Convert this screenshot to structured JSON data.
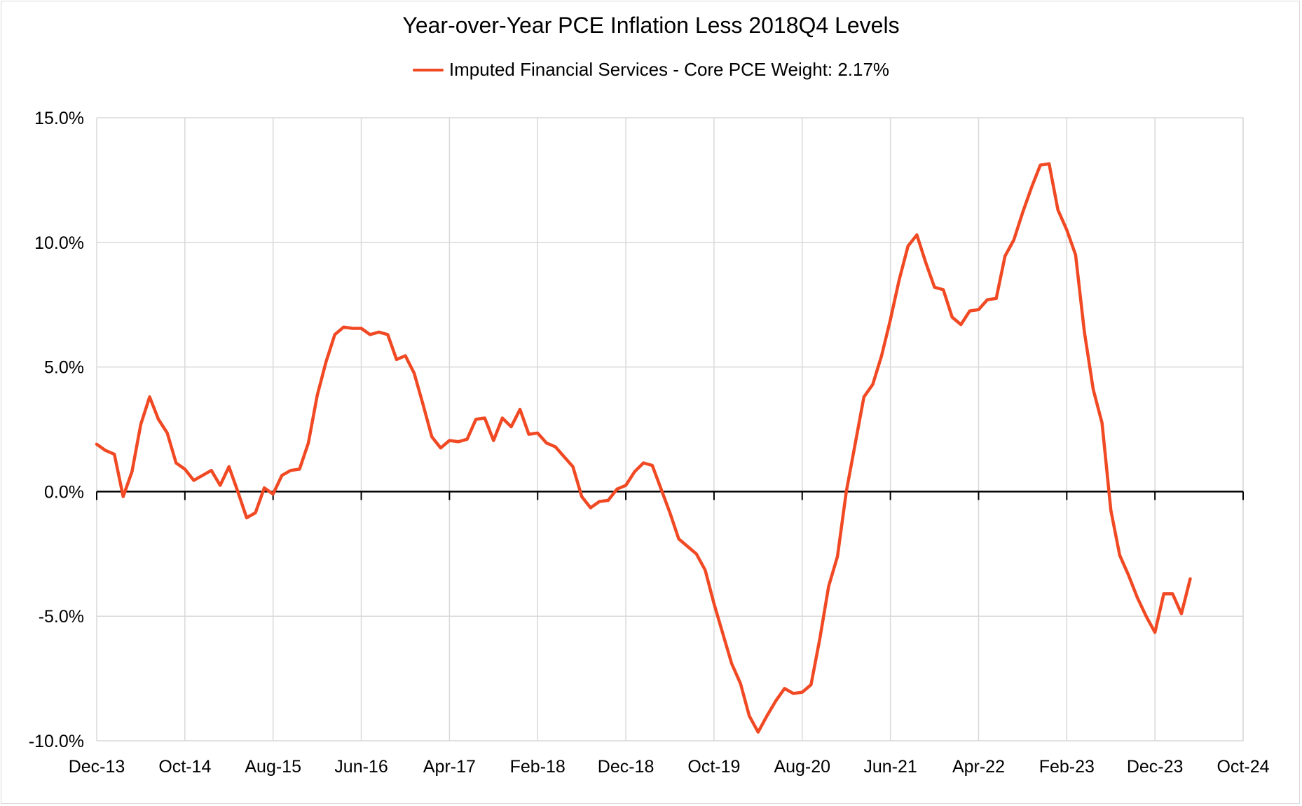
{
  "chart_data": {
    "type": "line",
    "title": "Year-over-Year PCE Inflation Less 2018Q4 Levels",
    "xlabel": "",
    "ylabel": "",
    "ylim": [
      -10,
      15
    ],
    "yticks": [
      "-10.0%",
      "-5.0%",
      "0.0%",
      "5.0%",
      "10.0%",
      "15.0%"
    ],
    "ytick_values": [
      -10,
      -5,
      0,
      5,
      10,
      15
    ],
    "xticks": [
      "Dec-13",
      "Oct-14",
      "Aug-15",
      "Jun-16",
      "Apr-17",
      "Feb-18",
      "Dec-18",
      "Oct-19",
      "Aug-20",
      "Jun-21",
      "Apr-22",
      "Feb-23",
      "Dec-23",
      "Oct-24"
    ],
    "x_start": "Dec-13",
    "x_end": "Oct-24",
    "grid": "vertical and horizontal",
    "legend_position": "top",
    "series": [
      {
        "name": "Imputed Financial Services - Core PCE Weight: 2.17%",
        "color": "#f04923",
        "x": [
          "Dec-13",
          "Jan-14",
          "Feb-14",
          "Mar-14",
          "Apr-14",
          "May-14",
          "Jun-14",
          "Jul-14",
          "Aug-14",
          "Sep-14",
          "Oct-14",
          "Nov-14",
          "Dec-14",
          "Jan-15",
          "Feb-15",
          "Mar-15",
          "Apr-15",
          "May-15",
          "Jun-15",
          "Jul-15",
          "Aug-15",
          "Sep-15",
          "Oct-15",
          "Nov-15",
          "Dec-15",
          "Jan-16",
          "Feb-16",
          "Mar-16",
          "Apr-16",
          "May-16",
          "Jun-16",
          "Jul-16",
          "Aug-16",
          "Sep-16",
          "Oct-16",
          "Nov-16",
          "Dec-16",
          "Jan-17",
          "Feb-17",
          "Mar-17",
          "Apr-17",
          "May-17",
          "Jun-17",
          "Jul-17",
          "Aug-17",
          "Sep-17",
          "Oct-17",
          "Nov-17",
          "Dec-17",
          "Jan-18",
          "Feb-18",
          "Mar-18",
          "Apr-18",
          "May-18",
          "Jun-18",
          "Jul-18",
          "Aug-18",
          "Sep-18",
          "Oct-18",
          "Nov-18",
          "Dec-18",
          "Jan-19",
          "Feb-19",
          "Mar-19",
          "Apr-19",
          "May-19",
          "Jun-19",
          "Jul-19",
          "Aug-19",
          "Sep-19",
          "Oct-19",
          "Nov-19",
          "Dec-19",
          "Jan-20",
          "Feb-20",
          "Mar-20",
          "Apr-20",
          "May-20",
          "Jun-20",
          "Jul-20",
          "Aug-20",
          "Sep-20",
          "Oct-20",
          "Nov-20",
          "Dec-20",
          "Jan-21",
          "Feb-21",
          "Mar-21",
          "Apr-21",
          "May-21",
          "Jun-21",
          "Jul-21",
          "Aug-21",
          "Sep-21",
          "Oct-21",
          "Nov-21",
          "Dec-21",
          "Jan-22",
          "Feb-22",
          "Mar-22",
          "Apr-22",
          "May-22",
          "Jun-22",
          "Jul-22",
          "Aug-22",
          "Sep-22",
          "Oct-22",
          "Nov-22",
          "Dec-22",
          "Jan-23",
          "Feb-23",
          "Mar-23",
          "Apr-23",
          "May-23",
          "Jun-23",
          "Jul-23",
          "Aug-23",
          "Sep-23",
          "Oct-23",
          "Nov-23",
          "Dec-23",
          "Jan-24",
          "Feb-24",
          "Mar-24",
          "Apr-24"
        ],
        "values": [
          1.9,
          1.65,
          1.5,
          -0.2,
          0.8,
          2.7,
          3.8,
          2.9,
          2.35,
          1.15,
          0.9,
          0.45,
          0.65,
          0.85,
          0.25,
          1.0,
          0.0,
          -1.05,
          -0.85,
          0.15,
          -0.1,
          0.65,
          0.85,
          0.9,
          1.95,
          3.85,
          5.2,
          6.3,
          6.6,
          6.55,
          6.55,
          6.3,
          6.4,
          6.3,
          5.3,
          5.45,
          4.75,
          3.5,
          2.2,
          1.75,
          2.05,
          2.0,
          2.1,
          2.9,
          2.95,
          2.05,
          2.95,
          2.6,
          3.3,
          2.3,
          2.35,
          1.95,
          1.8,
          1.4,
          1.0,
          -0.2,
          -0.65,
          -0.4,
          -0.35,
          0.1,
          0.25,
          0.8,
          1.15,
          1.05,
          0.1,
          -0.85,
          -1.9,
          -2.2,
          -2.5,
          -3.15,
          -4.5,
          -5.7,
          -6.9,
          -7.7,
          -9.0,
          -9.65,
          -9.0,
          -8.4,
          -7.9,
          -8.1,
          -8.05,
          -7.75,
          -5.9,
          -3.8,
          -2.6,
          0.0,
          1.9,
          3.8,
          4.3,
          5.45,
          6.9,
          8.5,
          9.85,
          10.3,
          9.2,
          8.2,
          8.1,
          7.0,
          6.7,
          7.25,
          7.3,
          7.7,
          7.75,
          9.45,
          10.1,
          11.2,
          12.2,
          13.1,
          13.15,
          11.3,
          10.5,
          9.5,
          6.4,
          4.1,
          2.75,
          -0.75,
          -2.55,
          -3.35,
          -4.25,
          -5.0,
          -5.65,
          -4.1,
          -4.1,
          -4.9,
          -3.5
        ]
      }
    ]
  }
}
